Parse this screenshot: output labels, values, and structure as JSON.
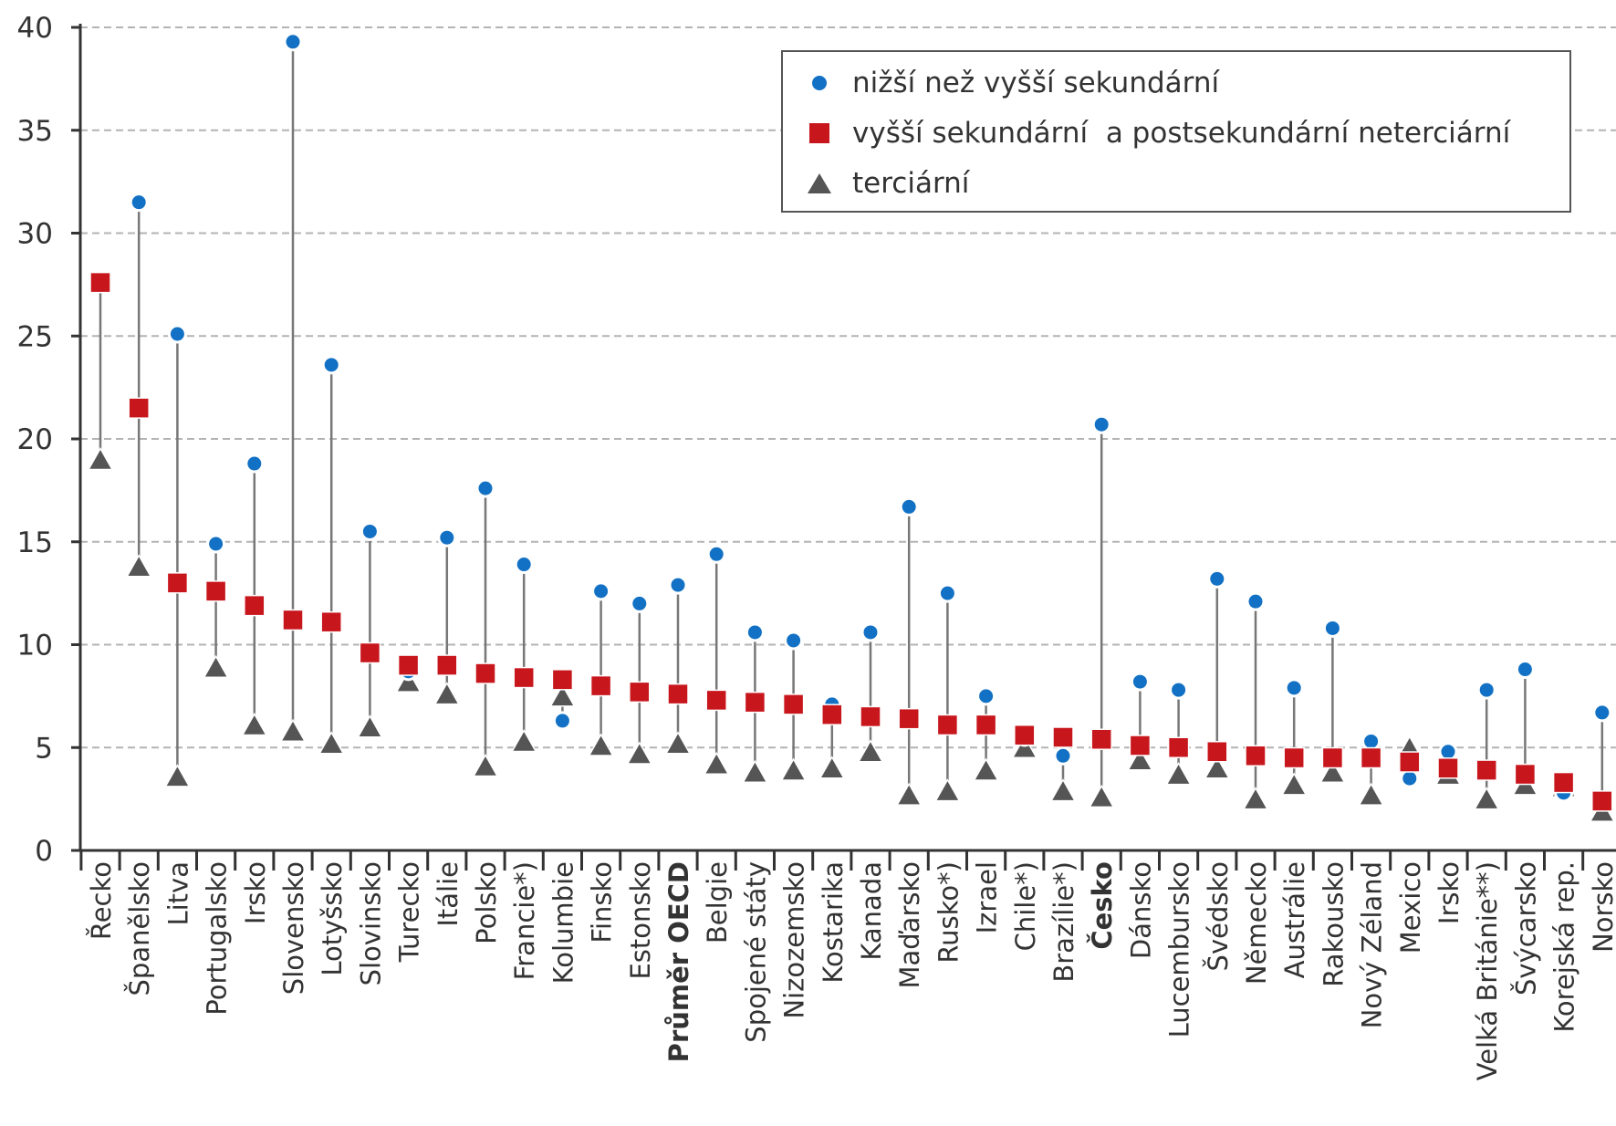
{
  "chart_data": {
    "type": "scatter",
    "ylim": [
      0,
      40
    ],
    "yticks": [
      "0",
      "5",
      "10",
      "15",
      "20",
      "25",
      "30",
      "35",
      "40"
    ],
    "grid": true,
    "legend_position": "top-right",
    "categories": [
      "Řecko",
      "Španělsko",
      "Litva",
      "Portugalsko",
      "Irsko",
      "Slovensko",
      "Lotyšsko",
      "Slovinsko",
      "Turecko",
      "Itálie",
      "Polsko",
      "Francie*)",
      "Kolumbie",
      "Finsko",
      "Estonsko",
      "Průměr OECD",
      "Belgie",
      "Spojené státy",
      "Nizozemsko",
      "Kostarika",
      "Kanada",
      "Maďarsko",
      "Rusko*)",
      "Izrael",
      "Chile*)",
      "Brazílie*)",
      "Česko",
      "Dánsko",
      "Lucembursko",
      "Švédsko",
      "Německo",
      "Austrálie",
      "Rakousko",
      "Nový Zéland",
      "Mexico",
      "Irsko",
      "Velká Británie**)",
      "Švýcarsko",
      "Korejská rep.",
      "Norsko"
    ],
    "bold_categories": [
      "Průměr OECD",
      "Česko"
    ],
    "series": [
      {
        "name": "nižší než vyšší sekundární",
        "marker": "circle",
        "color": "#1271c4",
        "values": [
          null,
          31.5,
          25.1,
          14.9,
          18.8,
          39.3,
          23.6,
          15.5,
          8.7,
          15.2,
          17.6,
          13.9,
          6.3,
          12.6,
          12.0,
          12.9,
          14.4,
          10.6,
          10.2,
          7.1,
          10.6,
          16.7,
          12.5,
          7.5,
          5.5,
          4.6,
          20.7,
          8.2,
          7.8,
          13.2,
          12.1,
          7.9,
          10.8,
          5.3,
          3.5,
          4.8,
          7.8,
          8.8,
          2.8,
          6.7
        ]
      },
      {
        "name": "vyšší sekundární  a postsekundární neterciární",
        "marker": "square",
        "color": "#c8161d",
        "values": [
          27.6,
          21.5,
          13.0,
          12.6,
          11.9,
          11.2,
          11.1,
          9.6,
          9.0,
          9.0,
          8.6,
          8.4,
          8.3,
          8.0,
          7.7,
          7.6,
          7.3,
          7.2,
          7.1,
          6.6,
          6.5,
          6.4,
          6.1,
          6.1,
          5.6,
          5.5,
          5.4,
          5.1,
          5.0,
          4.8,
          4.6,
          4.5,
          4.5,
          4.5,
          4.3,
          4.0,
          3.9,
          3.7,
          3.3,
          2.4
        ]
      },
      {
        "name": "terciární",
        "marker": "triangle",
        "color": "#555555",
        "values": [
          19.0,
          13.8,
          3.6,
          8.9,
          6.1,
          5.8,
          5.2,
          6.0,
          8.2,
          7.6,
          4.1,
          5.3,
          7.5,
          5.1,
          4.7,
          5.2,
          4.2,
          3.8,
          3.9,
          4.0,
          4.8,
          2.7,
          2.9,
          3.9,
          5.0,
          2.9,
          2.6,
          4.4,
          3.7,
          4.0,
          2.5,
          3.2,
          3.8,
          2.7,
          5.0,
          3.7,
          2.5,
          3.2,
          3.1,
          1.9
        ]
      }
    ]
  },
  "legend": {
    "items": [
      {
        "label": "nižší než vyšší sekundární"
      },
      {
        "label": "vyšší sekundární  a postsekundární neterciární"
      },
      {
        "label": "terciární"
      }
    ]
  }
}
